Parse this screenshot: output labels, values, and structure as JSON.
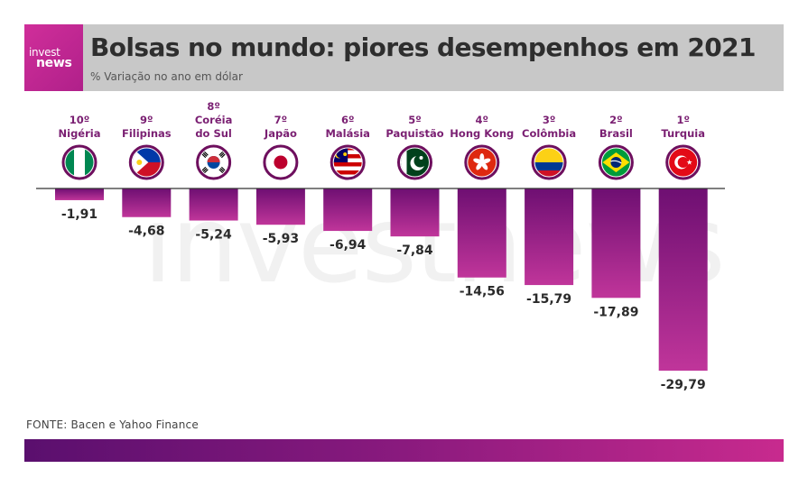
{
  "header": {
    "logo_line1": "invest",
    "logo_line2": "news",
    "title": "Bolsas no mundo: piores desempenhos em 2021",
    "subtitle": "% Variação no ano em dólar"
  },
  "watermark": "investnews",
  "source": "FONTE: Bacen e Yahoo Finance",
  "colors": {
    "bar_top": "#6e0f72",
    "bar_bottom": "#c0359a",
    "label_color": "#7a1f72",
    "value_color": "#2a2a2a"
  },
  "chart_data": {
    "type": "bar",
    "title": "Bolsas no mundo: piores desempenhos em 2021",
    "subtitle": "% Variação no ano em dólar",
    "categories": [
      "Nigéria",
      "Filipinas",
      "Coréia do Sul",
      "Japão",
      "Malásia",
      "Paquistão",
      "Hong Kong",
      "Colômbia",
      "Brasil",
      "Turquia"
    ],
    "ranks": [
      "10º",
      "9º",
      "8º",
      "7º",
      "6º",
      "5º",
      "4º",
      "3º",
      "2º",
      "1º"
    ],
    "label_lines": [
      [
        "10º",
        "Nigéria"
      ],
      [
        "9º",
        "Filipinas"
      ],
      [
        "8º",
        "Coréia",
        "do Sul"
      ],
      [
        "7º",
        "Japão"
      ],
      [
        "6º",
        "Malásia"
      ],
      [
        "5º",
        "Paquistão"
      ],
      [
        "4º",
        "Hong Kong"
      ],
      [
        "3º",
        "Colômbia"
      ],
      [
        "2º",
        "Brasil"
      ],
      [
        "1º",
        "Turquia"
      ]
    ],
    "values": [
      -1.91,
      -4.68,
      -5.24,
      -5.93,
      -6.94,
      -7.84,
      -14.56,
      -15.79,
      -17.89,
      -29.79
    ],
    "value_labels": [
      "-1,91",
      "-4,68",
      "-5,24",
      "-5,93",
      "-6,94",
      "-7,84",
      "-14,56",
      "-15,79",
      "-17,89",
      "-29,79"
    ],
    "flag_icons": [
      "nigeria-flag-icon",
      "philippines-flag-icon",
      "south-korea-flag-icon",
      "japan-flag-icon",
      "malaysia-flag-icon",
      "pakistan-flag-icon",
      "hong-kong-flag-icon",
      "colombia-flag-icon",
      "brazil-flag-icon",
      "turkey-flag-icon"
    ],
    "ylim": [
      -30,
      0
    ],
    "grid": false,
    "legend": "none"
  }
}
